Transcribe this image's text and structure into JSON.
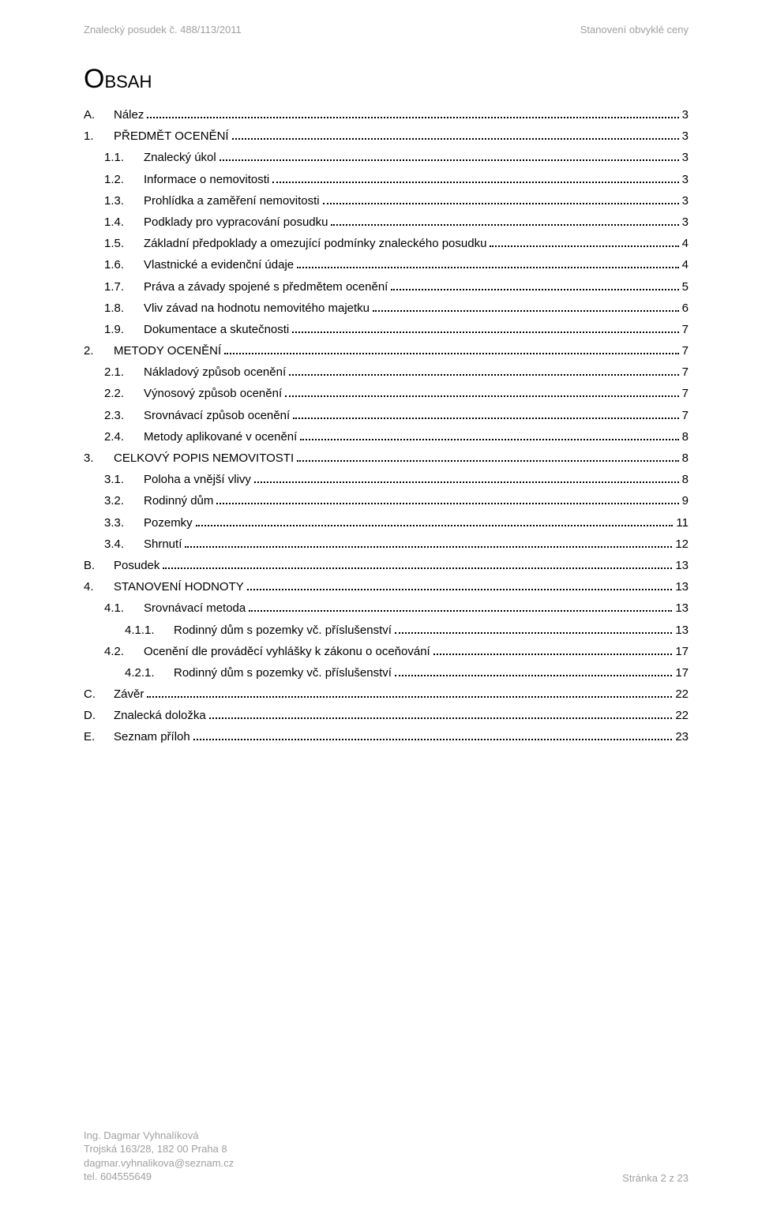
{
  "header": {
    "left": "Znalecký posudek č. 488/113/2011",
    "right": "Stanovení obvyklé ceny"
  },
  "title": {
    "main": "O",
    "sub": "BSAH"
  },
  "toc": [
    {
      "level": 1,
      "num": "A.",
      "text": "Nález",
      "page": "3",
      "numw": 38
    },
    {
      "level": 1,
      "num": "1.",
      "text": "PŘEDMĚT OCENĚNÍ",
      "page": "3",
      "numw": 38
    },
    {
      "level": 2,
      "num": "1.1.",
      "text": "Znalecký úkol",
      "page": "3",
      "numw": 50
    },
    {
      "level": 2,
      "num": "1.2.",
      "text": "Informace o nemovitosti",
      "page": "3",
      "numw": 50
    },
    {
      "level": 2,
      "num": "1.3.",
      "text": "Prohlídka a zaměření nemovitosti",
      "page": "3",
      "numw": 50
    },
    {
      "level": 2,
      "num": "1.4.",
      "text": "Podklady pro vypracování posudku",
      "page": "3",
      "numw": 50
    },
    {
      "level": 2,
      "num": "1.5.",
      "text": "Základní předpoklady a omezující podmínky znaleckého posudku",
      "page": "4",
      "numw": 50
    },
    {
      "level": 2,
      "num": "1.6.",
      "text": "Vlastnické a evidenční údaje",
      "page": "4",
      "numw": 50
    },
    {
      "level": 2,
      "num": "1.7.",
      "text": "Práva a závady spojené s předmětem ocenění",
      "page": "5",
      "numw": 50
    },
    {
      "level": 2,
      "num": "1.8.",
      "text": "Vliv závad na hodnotu nemovitého majetku",
      "page": "6",
      "numw": 50
    },
    {
      "level": 2,
      "num": "1.9.",
      "text": "Dokumentace a skutečnosti",
      "page": "7",
      "numw": 50
    },
    {
      "level": 1,
      "num": "2.",
      "text": "METODY OCENĚNÍ",
      "page": "7",
      "numw": 38
    },
    {
      "level": 2,
      "num": "2.1.",
      "text": "Nákladový způsob ocenění",
      "page": "7",
      "numw": 50
    },
    {
      "level": 2,
      "num": "2.2.",
      "text": "Výnosový způsob ocenění",
      "page": "7",
      "numw": 50
    },
    {
      "level": 2,
      "num": "2.3.",
      "text": "Srovnávací způsob ocenění",
      "page": "7",
      "numw": 50
    },
    {
      "level": 2,
      "num": "2.4.",
      "text": "Metody aplikované v ocenění",
      "page": "8",
      "numw": 50
    },
    {
      "level": 1,
      "num": "3.",
      "text": "CELKOVÝ POPIS NEMOVITOSTI",
      "page": "8",
      "numw": 38
    },
    {
      "level": 2,
      "num": "3.1.",
      "text": "Poloha a vnější vlivy",
      "page": "8",
      "numw": 50
    },
    {
      "level": 2,
      "num": "3.2.",
      "text": "Rodinný dům",
      "page": "9",
      "numw": 50
    },
    {
      "level": 2,
      "num": "3.3.",
      "text": "Pozemky",
      "page": "11",
      "numw": 50
    },
    {
      "level": 2,
      "num": "3.4.",
      "text": "Shrnutí",
      "page": "12",
      "numw": 50
    },
    {
      "level": 1,
      "num": "B.",
      "text": "Posudek",
      "page": "13",
      "numw": 38
    },
    {
      "level": 1,
      "num": "4.",
      "text": "STANOVENÍ HODNOTY",
      "page": "13",
      "numw": 38
    },
    {
      "level": 2,
      "num": "4.1.",
      "text": "Srovnávací metoda",
      "page": "13",
      "numw": 50
    },
    {
      "level": 3,
      "num": "4.1.1.",
      "text": "Rodinný dům s pozemky vč. příslušenství",
      "page": "13",
      "numw": 62
    },
    {
      "level": 2,
      "num": "4.2.",
      "text": "Ocenění dle prováděcí vyhlášky k zákonu o oceňování",
      "page": "17",
      "numw": 50
    },
    {
      "level": 3,
      "num": "4.2.1.",
      "text": "Rodinný dům s pozemky vč. příslušenství",
      "page": "17",
      "numw": 62
    },
    {
      "level": 1,
      "num": "C.",
      "text": "Závěr",
      "page": "22",
      "numw": 38
    },
    {
      "level": 1,
      "num": "D.",
      "text": "Znalecká doložka",
      "page": "22",
      "numw": 38
    },
    {
      "level": 1,
      "num": "E.",
      "text": "Seznam příloh",
      "page": "23",
      "numw": 38
    }
  ],
  "footer": {
    "name": "Ing. Dagmar Vyhnalíková",
    "addr": "Trojská 163/28, 182 00 Praha 8",
    "email": "dagmar.vyhnalikova@seznam.cz",
    "tel": "tel. 604555649",
    "right": "Stránka 2 z 23"
  }
}
